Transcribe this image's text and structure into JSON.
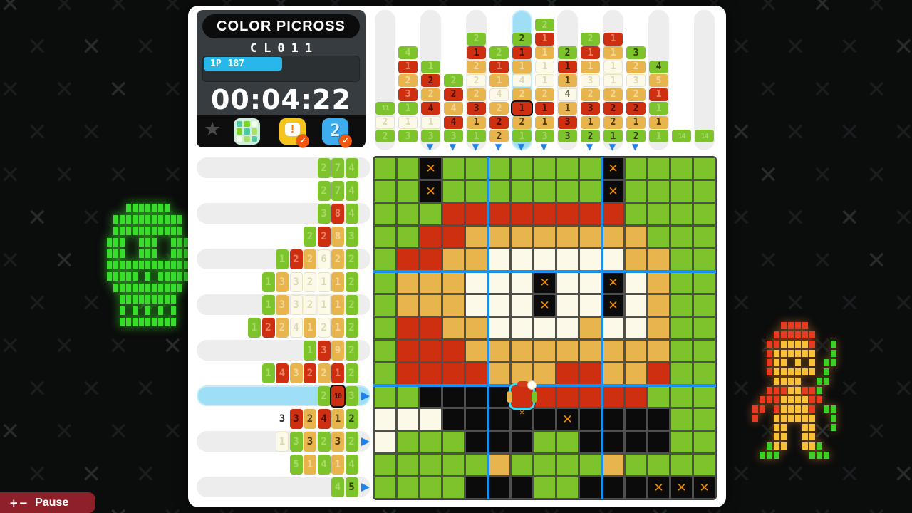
{
  "info_panel": {
    "title": "COLOR PICROSS",
    "puzzle_id": "CL011",
    "player": "1P",
    "score": "187",
    "timer": "00:04:22",
    "alert_glyph": "!",
    "hint_icon_label": "2",
    "badge_check": "✓",
    "icons": [
      "favorite-star-icon",
      "palette-board-icon",
      "hint-alert-icon",
      "hint-number-icon"
    ]
  },
  "pause": {
    "buttons": "+−",
    "label": "Pause"
  },
  "palette_colors": {
    "green": "#7cc32c",
    "red": "#ce2f10",
    "orange": "#e7b44e",
    "cream": "#fcf9e8",
    "black": "#0b0b0b",
    "x_mark": "#ef8b05",
    "highlight_cyan": "#9edff6",
    "guide_blue": "#1e8fe8",
    "progress_cyan": "#29b7e9"
  },
  "highlight": {
    "column": 7,
    "row": 11
  },
  "column_arrows": [
    3,
    4,
    5,
    6,
    7,
    8,
    10,
    11,
    12
  ],
  "row_arrows": [
    11,
    13,
    15
  ],
  "column_hints": [
    [
      [
        11,
        "G",
        "f"
      ],
      [
        2,
        "W",
        "f"
      ],
      [
        2,
        "G",
        "f"
      ]
    ],
    [
      [
        4,
        "G",
        "f"
      ],
      [
        1,
        "R",
        "f"
      ],
      [
        2,
        "O",
        "f"
      ],
      [
        3,
        "R",
        "f"
      ],
      [
        1,
        "G",
        "f"
      ],
      [
        1,
        "W",
        "f"
      ],
      [
        3,
        "G",
        "f"
      ]
    ],
    [
      [
        1,
        "G",
        "f"
      ],
      [
        2,
        "R",
        "d"
      ],
      [
        2,
        "O",
        "f"
      ],
      [
        4,
        "R",
        "d"
      ],
      [
        1,
        "W",
        "f"
      ],
      [
        3,
        "G",
        "f"
      ]
    ],
    [
      [
        2,
        "G",
        "f"
      ],
      [
        2,
        "R",
        "d"
      ],
      [
        4,
        "O",
        "f"
      ],
      [
        4,
        "R",
        "d"
      ],
      [
        3,
        "G",
        "f"
      ]
    ],
    [
      [
        2,
        "G",
        "f"
      ],
      [
        1,
        "R",
        "d"
      ],
      [
        2,
        "O",
        "f"
      ],
      [
        2,
        "W",
        "f"
      ],
      [
        2,
        "O",
        "f"
      ],
      [
        3,
        "R",
        "d"
      ],
      [
        1,
        "O",
        "d"
      ],
      [
        1,
        "G",
        "f"
      ]
    ],
    [
      [
        2,
        "G",
        "f"
      ],
      [
        1,
        "R",
        "f"
      ],
      [
        1,
        "O",
        "f"
      ],
      [
        4,
        "W",
        "f"
      ],
      [
        2,
        "O",
        "f"
      ],
      [
        2,
        "R",
        "d"
      ],
      [
        2,
        "O",
        "d"
      ]
    ],
    [
      [
        2,
        "G",
        "d"
      ],
      [
        1,
        "R",
        "d"
      ],
      [
        1,
        "O",
        "f"
      ],
      [
        4,
        "W",
        "f"
      ],
      [
        2,
        "O",
        "f"
      ],
      [
        1,
        "R",
        "s"
      ],
      [
        2,
        "O",
        "d"
      ],
      [
        1,
        "G",
        "f"
      ]
    ],
    [
      [
        2,
        "G",
        "f"
      ],
      [
        1,
        "R",
        "f"
      ],
      [
        1,
        "O",
        "f"
      ],
      [
        1,
        "W",
        "f"
      ],
      [
        1,
        "W",
        "f"
      ],
      [
        2,
        "O",
        "f"
      ],
      [
        1,
        "R",
        "d"
      ],
      [
        1,
        "O",
        "d"
      ],
      [
        3,
        "G",
        "f"
      ]
    ],
    [
      [
        2,
        "G",
        "d"
      ],
      [
        1,
        "R",
        "d"
      ],
      [
        1,
        "O",
        "d"
      ],
      [
        4,
        "W",
        "d"
      ],
      [
        1,
        "O",
        "d"
      ],
      [
        3,
        "R",
        "d"
      ],
      [
        3,
        "G",
        "d"
      ]
    ],
    [
      [
        2,
        "G",
        "f"
      ],
      [
        1,
        "R",
        "f"
      ],
      [
        1,
        "O",
        "f"
      ],
      [
        3,
        "W",
        "f"
      ],
      [
        2,
        "O",
        "f"
      ],
      [
        3,
        "R",
        "d"
      ],
      [
        1,
        "O",
        "d"
      ],
      [
        2,
        "G",
        "d"
      ]
    ],
    [
      [
        1,
        "R",
        "f"
      ],
      [
        1,
        "O",
        "f"
      ],
      [
        1,
        "W",
        "f"
      ],
      [
        1,
        "W",
        "f"
      ],
      [
        2,
        "O",
        "f"
      ],
      [
        2,
        "R",
        "d"
      ],
      [
        2,
        "O",
        "d"
      ],
      [
        1,
        "G",
        "d"
      ]
    ],
    [
      [
        3,
        "G",
        "d"
      ],
      [
        2,
        "O",
        "f"
      ],
      [
        3,
        "W",
        "f"
      ],
      [
        2,
        "O",
        "f"
      ],
      [
        2,
        "R",
        "d"
      ],
      [
        1,
        "O",
        "d"
      ],
      [
        2,
        "G",
        "d"
      ]
    ],
    [
      [
        4,
        "G",
        "d"
      ],
      [
        5,
        "O",
        "f"
      ],
      [
        1,
        "R",
        "f"
      ],
      [
        1,
        "G",
        "f"
      ],
      [
        1,
        "O",
        "d"
      ],
      [
        1,
        "G",
        "f"
      ]
    ],
    [
      [
        14,
        "G",
        "f"
      ]
    ],
    [
      [
        14,
        "G",
        "f"
      ]
    ]
  ],
  "row_hints": [
    [
      [
        2,
        "G",
        "f"
      ],
      [
        7,
        "G",
        "f"
      ],
      [
        4,
        "G",
        "f"
      ]
    ],
    [
      [
        2,
        "G",
        "f"
      ],
      [
        7,
        "G",
        "f"
      ],
      [
        4,
        "G",
        "f"
      ]
    ],
    [
      [
        3,
        "G",
        "f"
      ],
      [
        8,
        "R",
        "f"
      ],
      [
        4,
        "G",
        "f"
      ]
    ],
    [
      [
        2,
        "G",
        "f"
      ],
      [
        2,
        "R",
        "f"
      ],
      [
        8,
        "O",
        "f"
      ],
      [
        3,
        "G",
        "f"
      ]
    ],
    [
      [
        1,
        "G",
        "f"
      ],
      [
        2,
        "R",
        "f"
      ],
      [
        2,
        "O",
        "f"
      ],
      [
        6,
        "W",
        "f"
      ],
      [
        2,
        "O",
        "f"
      ],
      [
        2,
        "G",
        "f"
      ]
    ],
    [
      [
        1,
        "G",
        "f"
      ],
      [
        3,
        "O",
        "f"
      ],
      [
        3,
        "W",
        "f"
      ],
      [
        2,
        "W",
        "f"
      ],
      [
        1,
        "W",
        "f"
      ],
      [
        1,
        "O",
        "f"
      ],
      [
        2,
        "G",
        "f"
      ]
    ],
    [
      [
        1,
        "G",
        "f"
      ],
      [
        3,
        "O",
        "f"
      ],
      [
        3,
        "W",
        "f"
      ],
      [
        2,
        "W",
        "f"
      ],
      [
        1,
        "W",
        "f"
      ],
      [
        1,
        "O",
        "f"
      ],
      [
        2,
        "G",
        "f"
      ]
    ],
    [
      [
        1,
        "G",
        "f"
      ],
      [
        2,
        "R",
        "f"
      ],
      [
        2,
        "O",
        "f"
      ],
      [
        4,
        "W",
        "f"
      ],
      [
        1,
        "O",
        "f"
      ],
      [
        2,
        "W",
        "f"
      ],
      [
        1,
        "O",
        "f"
      ],
      [
        2,
        "G",
        "f"
      ]
    ],
    [
      [
        1,
        "G",
        "f"
      ],
      [
        3,
        "R",
        "f"
      ],
      [
        9,
        "O",
        "f"
      ],
      [
        2,
        "G",
        "f"
      ]
    ],
    [
      [
        1,
        "G",
        "f"
      ],
      [
        4,
        "R",
        "f"
      ],
      [
        3,
        "O",
        "f"
      ],
      [
        2,
        "R",
        "f"
      ],
      [
        2,
        "O",
        "f"
      ],
      [
        1,
        "R",
        "f"
      ],
      [
        2,
        "G",
        "f"
      ]
    ],
    [
      [
        2,
        "G",
        "f"
      ],
      [
        10,
        "R",
        "s"
      ],
      [
        3,
        "G",
        "f"
      ]
    ],
    [
      [
        3,
        "K",
        "d"
      ],
      [
        3,
        "R",
        "d"
      ],
      [
        2,
        "O",
        "d"
      ],
      [
        4,
        "R",
        "d"
      ],
      [
        1,
        "O",
        "d"
      ],
      [
        2,
        "G",
        "d"
      ]
    ],
    [
      [
        1,
        "W",
        "f"
      ],
      [
        3,
        "G",
        "f"
      ],
      [
        3,
        "O",
        "d"
      ],
      [
        2,
        "G",
        "f"
      ],
      [
        3,
        "O",
        "d"
      ],
      [
        2,
        "G",
        "f"
      ]
    ],
    [
      [
        5,
        "G",
        "f"
      ],
      [
        1,
        "O",
        "f"
      ],
      [
        4,
        "G",
        "f"
      ],
      [
        1,
        "O",
        "f"
      ],
      [
        4,
        "G",
        "f"
      ]
    ],
    [
      [
        4,
        "G",
        "f"
      ],
      [
        5,
        "G",
        "d"
      ]
    ]
  ],
  "grid": [
    "GGXGGGGGGGXGGGG",
    "GGXGGGGGGGXGGGG",
    "GGGRRRRRRRRGGGG",
    "GGRROOOOOOOOGGG",
    "GRROOWWWWWWOOGG",
    "GOOOWWWXWWXWOGG",
    "GOOOWWWXWWXWOGG",
    "GRROOWWWWOWWOGG",
    "GRRROOOOOOOOOGG",
    "GRRRROOORROORGG",
    "GGKKKKRRRRRRGGG",
    "WWWKKKKKXKKKKGG",
    "WGGGKKKGGKKKKGG",
    "GGGGGOGGGGOGGGG",
    "GGGGKKKGGKKKXXX"
  ],
  "cursor": {
    "row": 11,
    "col": 7,
    "color": "R"
  }
}
